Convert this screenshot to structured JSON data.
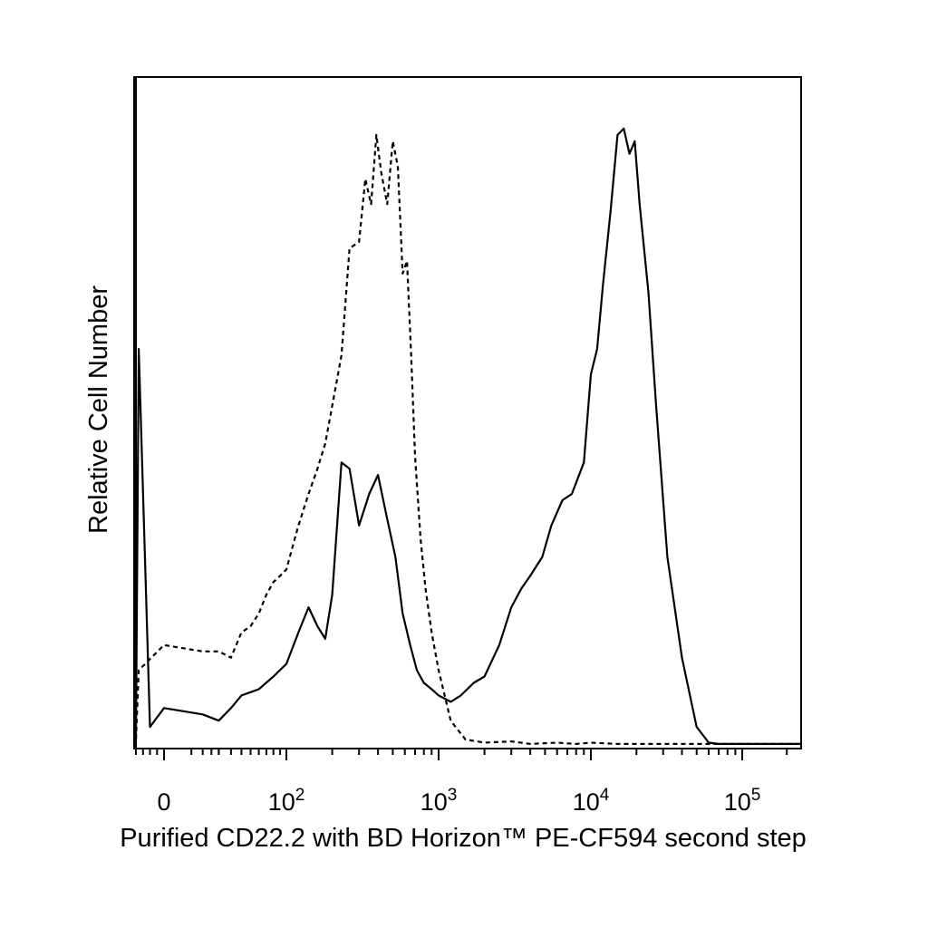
{
  "chart_data": {
    "type": "line",
    "title": "",
    "xlabel": "Purified CD22.2 with BD Horizon™ PE-CF594 second step",
    "ylabel": "Relative Cell Number",
    "x_scale": "biexponential",
    "xlim": [
      -20,
      250000
    ],
    "ylim": [
      0,
      100
    ],
    "grid": false,
    "legend": "none",
    "x_tick_labels": [
      {
        "value": 0,
        "base": "0",
        "exp": ""
      },
      {
        "value": 100,
        "base": "10",
        "exp": "2"
      },
      {
        "value": 1000,
        "base": "10",
        "exp": "3"
      },
      {
        "value": 10000,
        "base": "10",
        "exp": "4"
      },
      {
        "value": 100000,
        "base": "10",
        "exp": "5"
      }
    ],
    "series": [
      {
        "style": "dashed",
        "color": "#000000",
        "x": [
          -20,
          -18,
          0,
          10,
          20,
          30,
          40,
          50,
          60,
          70,
          80,
          90,
          100,
          120,
          140,
          160,
          180,
          200,
          230,
          260,
          300,
          330,
          360,
          390,
          420,
          460,
          500,
          540,
          580,
          620,
          660,
          700,
          760,
          820,
          900,
          1000,
          1200,
          1500,
          2000,
          3000,
          4000,
          6000,
          8000,
          10000,
          15000,
          20000,
          30000,
          45000,
          60000,
          80000,
          100000,
          150000,
          250000
        ],
        "y": [
          1,
          12,
          16,
          15,
          15,
          14,
          18,
          19,
          21,
          24,
          26,
          27,
          28,
          35,
          40,
          44,
          48,
          54,
          62,
          79,
          80,
          90,
          86,
          97,
          91,
          86,
          96,
          92,
          75,
          77,
          62,
          46,
          33,
          25,
          18,
          12,
          4,
          1,
          0.5,
          0.7,
          0.3,
          0.5,
          0.3,
          0.5,
          0.3,
          0.3,
          0.3,
          0.3,
          0.3,
          0.3,
          0.3,
          0.3,
          0.3
        ]
      },
      {
        "style": "solid",
        "color": "#000000",
        "x": [
          -20,
          -18,
          -10,
          0,
          10,
          20,
          30,
          40,
          60,
          80,
          100,
          120,
          140,
          160,
          180,
          200,
          230,
          260,
          300,
          350,
          400,
          460,
          520,
          580,
          650,
          720,
          800,
          900,
          1000,
          1200,
          1400,
          1700,
          2000,
          2500,
          3000,
          3500,
          4000,
          4800,
          5500,
          6500,
          7500,
          9000,
          10000,
          11000,
          12000,
          13500,
          15000,
          16500,
          18000,
          19500,
          21000,
          24000,
          27000,
          32000,
          40000,
          50000,
          60000,
          70000,
          100000,
          150000,
          250000
        ],
        "y": [
          1,
          63,
          3,
          6,
          5,
          4,
          6,
          8,
          9,
          11,
          13,
          18,
          22,
          19,
          17,
          24,
          45,
          44,
          35,
          40,
          43,
          36,
          30,
          21,
          16,
          12,
          10,
          9,
          8,
          7,
          8,
          10,
          11,
          16,
          22,
          25,
          27,
          30,
          35,
          39,
          40,
          45,
          59,
          63,
          73,
          85,
          97,
          98,
          94,
          96,
          86,
          72,
          54,
          30,
          14,
          3,
          0.5,
          0.3,
          0.3,
          0.3,
          0.3
        ]
      }
    ]
  }
}
